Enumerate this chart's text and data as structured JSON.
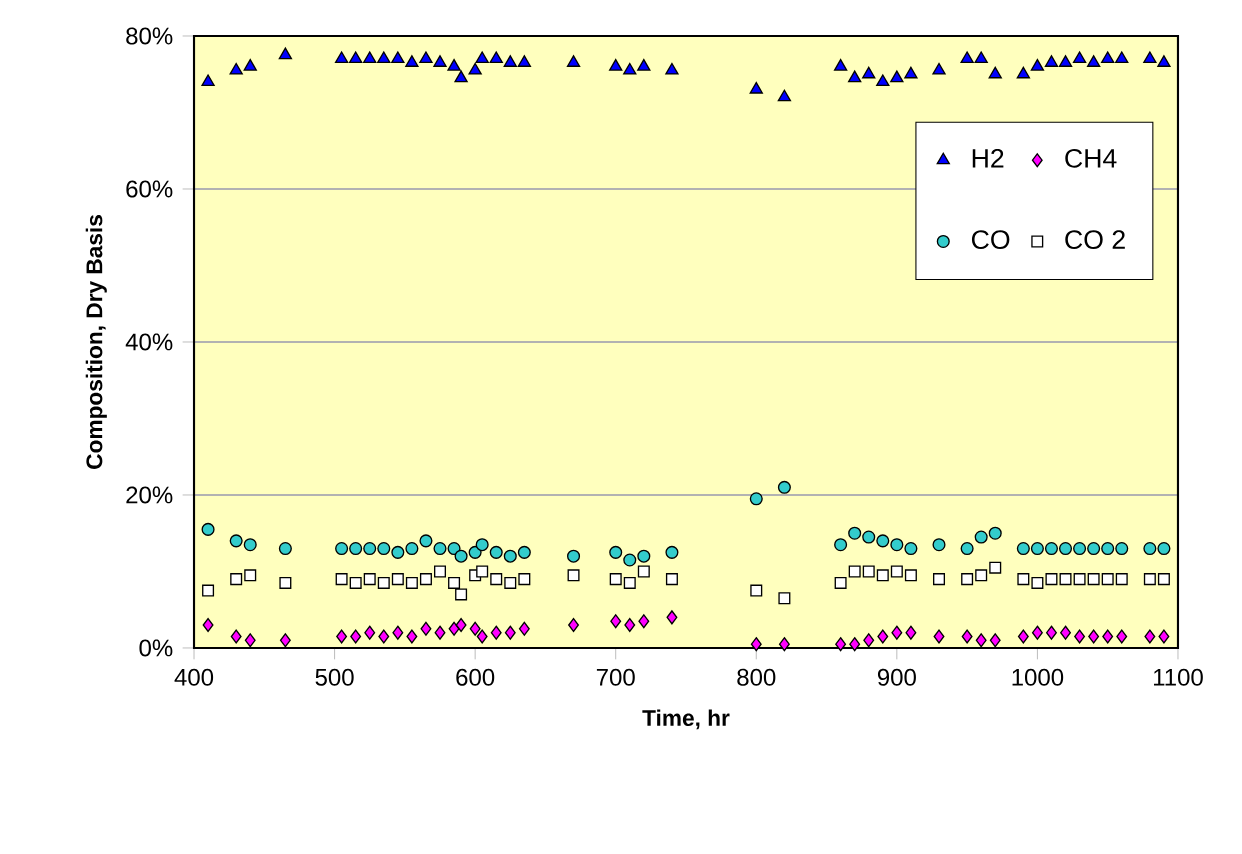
{
  "chart_data": {
    "type": "scatter",
    "xlabel": "Time, hr",
    "ylabel": "Composition, Dry Basis",
    "xlim": [
      400,
      1100
    ],
    "ylim": [
      0,
      80
    ],
    "xticks": [
      400,
      500,
      600,
      700,
      800,
      900,
      1000,
      1100
    ],
    "yticks": [
      {
        "value": 0,
        "label": "0%"
      },
      {
        "value": 20,
        "label": "20%"
      },
      {
        "value": 40,
        "label": "40%"
      },
      {
        "value": 60,
        "label": "60%"
      },
      {
        "value": 80,
        "label": "80%"
      }
    ],
    "grid": "y",
    "legend": "right",
    "x": [
      410,
      430,
      440,
      465,
      505,
      515,
      525,
      535,
      545,
      555,
      565,
      575,
      585,
      590,
      600,
      605,
      615,
      625,
      635,
      670,
      700,
      710,
      720,
      740,
      800,
      820,
      860,
      870,
      880,
      890,
      900,
      910,
      930,
      950,
      960,
      970,
      990,
      1000,
      1010,
      1020,
      1030,
      1040,
      1050,
      1060,
      1080,
      1090
    ],
    "series": [
      {
        "name": "H2",
        "color": "#0000ff",
        "marker": "triangle",
        "values": [
          74,
          75.5,
          76,
          77.5,
          77,
          77,
          77,
          77,
          77,
          76.5,
          77,
          76.5,
          76,
          74.5,
          75.5,
          77,
          77,
          76.5,
          76.5,
          76.5,
          76,
          75.5,
          76,
          75.5,
          73,
          72,
          76,
          74.5,
          75,
          74,
          74.5,
          75,
          75.5,
          77,
          77,
          75,
          75,
          76,
          76.5,
          76.5,
          77,
          76.5,
          77,
          77,
          77,
          76.5
        ]
      },
      {
        "name": "CH4",
        "color": "#ff00ff",
        "marker": "diamond",
        "values": [
          3,
          1.5,
          1,
          1,
          1.5,
          1.5,
          2,
          1.5,
          2,
          1.5,
          2.5,
          2,
          2.5,
          3,
          2.5,
          1.5,
          2,
          2,
          2.5,
          3,
          3.5,
          3,
          3.5,
          4,
          0.5,
          0.5,
          0.5,
          0.5,
          1,
          1.5,
          2,
          2,
          1.5,
          1.5,
          1,
          1,
          1.5,
          2,
          2,
          2,
          1.5,
          1.5,
          1.5,
          1.5,
          1.5,
          1.5
        ]
      },
      {
        "name": "CO",
        "color": "#33cccc",
        "marker": "circle",
        "values": [
          15.5,
          14,
          13.5,
          13,
          13,
          13,
          13,
          13,
          12.5,
          13,
          14,
          13,
          13,
          12,
          12.5,
          13.5,
          12.5,
          12,
          12.5,
          12,
          12.5,
          11.5,
          12,
          12.5,
          19.5,
          21,
          13.5,
          15,
          14.5,
          14,
          13.5,
          13,
          13.5,
          13,
          14.5,
          15,
          13,
          13,
          13,
          13,
          13,
          13,
          13,
          13,
          13,
          13
        ]
      },
      {
        "name": "CO 2",
        "color": "#ffffff",
        "marker": "square",
        "values": [
          7.5,
          9,
          9.5,
          8.5,
          9,
          8.5,
          9,
          8.5,
          9,
          8.5,
          9,
          10,
          8.5,
          7,
          9.5,
          10,
          9,
          8.5,
          9,
          9.5,
          9,
          8.5,
          10,
          9,
          7.5,
          6.5,
          8.5,
          10,
          10,
          9.5,
          10,
          9.5,
          9,
          9,
          9.5,
          10.5,
          9,
          8.5,
          9,
          9,
          9,
          9,
          9,
          9,
          9,
          9
        ]
      }
    ]
  }
}
